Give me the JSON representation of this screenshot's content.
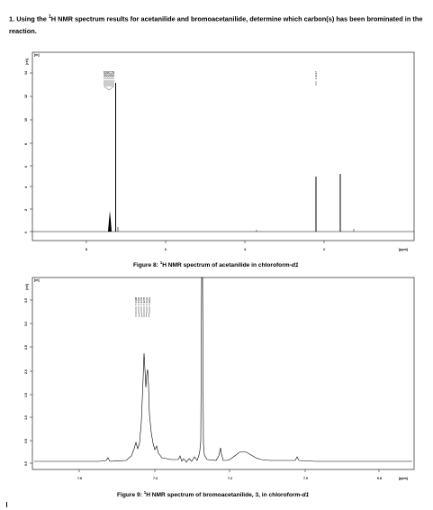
{
  "question": {
    "number": "1.",
    "text_before": "Using the ",
    "nucleus_mass": "1",
    "text_after": "H NMR spectrum results for acetanilide and bromoacetanilide, determine which carbon(s) has been brominated in the reaction."
  },
  "spectrum1": {
    "y_unit": "[rel]",
    "y_tag": "[m]",
    "y_ticks": [
      "14",
      "12",
      "10",
      "8",
      "6",
      "4",
      "2",
      "0"
    ],
    "x_ticks": [
      "8",
      "6",
      "4",
      "2"
    ],
    "x_unit": "[ppm]",
    "peak_labels": [
      "7.4928",
      "7.4832",
      "7.3150",
      "7.3071",
      "7.2871",
      "7.2598"
    ],
    "single_peak_label": "2.1137",
    "caption": {
      "prefix": "Figure 8: ",
      "mass": "1",
      "middle": "H NMR spectrum of acetanilide in chloroform-",
      "suffix": "d1"
    }
  },
  "spectrum2": {
    "y_unit": "[rel]",
    "y_tag": "[m]",
    "y_ticks": [
      "3.5",
      "3.0",
      "2.5",
      "2.0",
      "1.5",
      "1.0",
      "0.5",
      "0.0"
    ],
    "x_ticks": [
      "7.6",
      "7.4",
      "7.2",
      "7.0",
      "6.8"
    ],
    "x_unit": "[ppm]",
    "peak_labels": [
      "7.4498",
      "7.4462",
      "7.4378",
      "7.4278",
      "7.4141",
      "7.2961"
    ],
    "caption": {
      "prefix": "Figure 9: ",
      "mass": "1",
      "middle": "H NMR spectrum of bromoacetanilide, 3, in chloroform-",
      "suffix": "d1"
    }
  }
}
